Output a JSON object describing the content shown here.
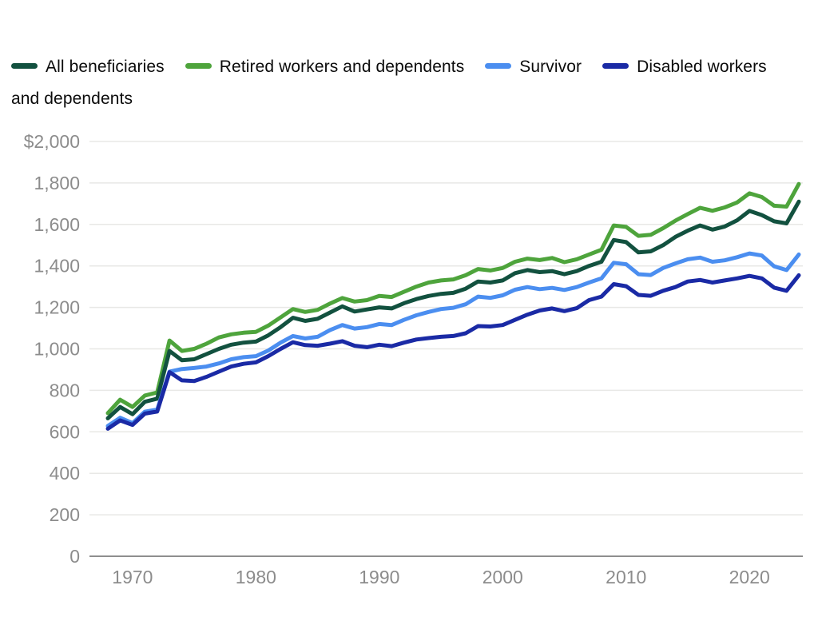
{
  "chart_data": {
    "type": "line",
    "title": "",
    "xlabel": "",
    "ylabel": "",
    "x": [
      1968,
      1969,
      1970,
      1971,
      1972,
      1973,
      1974,
      1975,
      1976,
      1977,
      1978,
      1979,
      1980,
      1981,
      1982,
      1983,
      1984,
      1985,
      1986,
      1987,
      1988,
      1989,
      1990,
      1991,
      1992,
      1993,
      1994,
      1995,
      1996,
      1997,
      1998,
      1999,
      2000,
      2001,
      2002,
      2003,
      2004,
      2005,
      2006,
      2007,
      2008,
      2009,
      2010,
      2011,
      2012,
      2013,
      2014,
      2015,
      2016,
      2017,
      2018,
      2019,
      2020,
      2021,
      2022,
      2023,
      2024
    ],
    "series": [
      {
        "name": "All beneficiaries",
        "color": "#12513f",
        "values": [
          665,
          720,
          685,
          745,
          760,
          990,
          945,
          950,
          975,
          1000,
          1020,
          1030,
          1035,
          1065,
          1105,
          1150,
          1135,
          1145,
          1175,
          1205,
          1180,
          1190,
          1200,
          1195,
          1220,
          1240,
          1255,
          1265,
          1270,
          1290,
          1325,
          1320,
          1330,
          1365,
          1380,
          1370,
          1375,
          1360,
          1375,
          1400,
          1420,
          1525,
          1515,
          1465,
          1470,
          1500,
          1540,
          1570,
          1595,
          1575,
          1590,
          1620,
          1665,
          1645,
          1615,
          1605,
          1710
        ]
      },
      {
        "name": "Retired workers and dependents",
        "color": "#4ea43c",
        "values": [
          690,
          755,
          720,
          775,
          790,
          1040,
          990,
          1000,
          1025,
          1055,
          1070,
          1078,
          1082,
          1112,
          1152,
          1192,
          1178,
          1188,
          1218,
          1245,
          1228,
          1235,
          1255,
          1250,
          1275,
          1300,
          1320,
          1330,
          1335,
          1355,
          1385,
          1378,
          1390,
          1420,
          1435,
          1428,
          1438,
          1418,
          1432,
          1455,
          1478,
          1595,
          1588,
          1545,
          1550,
          1582,
          1618,
          1650,
          1680,
          1666,
          1682,
          1706,
          1750,
          1732,
          1690,
          1686,
          1795
        ]
      },
      {
        "name": "Survivor",
        "color": "#4b8ef0",
        "values": [
          628,
          668,
          642,
          697,
          707,
          890,
          903,
          908,
          915,
          930,
          950,
          960,
          965,
          992,
          1030,
          1062,
          1050,
          1058,
          1090,
          1115,
          1098,
          1105,
          1120,
          1115,
          1140,
          1162,
          1178,
          1192,
          1198,
          1215,
          1252,
          1246,
          1258,
          1285,
          1298,
          1288,
          1294,
          1284,
          1298,
          1320,
          1340,
          1415,
          1408,
          1360,
          1356,
          1390,
          1412,
          1432,
          1440,
          1420,
          1427,
          1442,
          1460,
          1450,
          1398,
          1380,
          1455
        ]
      },
      {
        "name": "Disabled workers and dependents",
        "color": "#1a2aa5",
        "values": [
          615,
          655,
          633,
          688,
          698,
          888,
          848,
          845,
          865,
          890,
          915,
          928,
          935,
          965,
          1000,
          1032,
          1018,
          1015,
          1025,
          1037,
          1015,
          1008,
          1020,
          1013,
          1030,
          1045,
          1052,
          1058,
          1062,
          1075,
          1110,
          1108,
          1115,
          1140,
          1165,
          1185,
          1195,
          1182,
          1196,
          1235,
          1252,
          1312,
          1302,
          1260,
          1256,
          1280,
          1298,
          1325,
          1332,
          1320,
          1330,
          1340,
          1352,
          1340,
          1295,
          1280,
          1355
        ]
      }
    ],
    "ylim": [
      0,
      2000
    ],
    "yticks": [
      0,
      200,
      400,
      600,
      800,
      1000,
      1200,
      1400,
      1600,
      1800,
      2000
    ],
    "ytick_labels": [
      "0",
      "200",
      "400",
      "600",
      "800",
      "1,000",
      "1,200",
      "1,400",
      "1,600",
      "1,800",
      "$2,000"
    ],
    "xticks": [
      1970,
      1980,
      1990,
      2000,
      2010,
      2020
    ],
    "xtick_labels": [
      "1970",
      "1980",
      "1990",
      "2000",
      "2010",
      "2020"
    ],
    "grid": "horizontal",
    "legend_position": "top-left",
    "colors": {
      "background": "#ffffff",
      "grid": "#e8e8e6",
      "zero_line": "#8e8e8e",
      "tick_label": "#8c8c8c",
      "legend_text": "#0b0b0b"
    }
  }
}
